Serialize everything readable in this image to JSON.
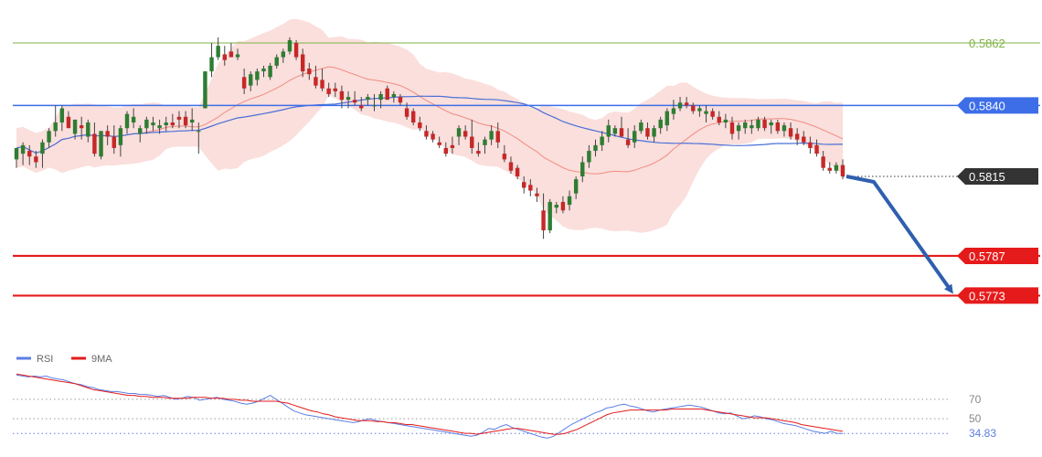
{
  "chart_data": {
    "type": "candlestick",
    "price_axis": {
      "min": 0.5758,
      "max": 0.5872
    },
    "levels": [
      {
        "value": 0.5862,
        "label": "0.5862",
        "color": "#7cb342",
        "style": "thin",
        "tag": "text"
      },
      {
        "value": 0.584,
        "label": "0.5840",
        "color": "#3d6ee8",
        "style": "medium",
        "tag": "badge"
      },
      {
        "value": 0.5815,
        "label": "0.5815",
        "color": "#333333",
        "style": "dotted",
        "tag": "badge"
      },
      {
        "value": 0.5787,
        "label": "0.5787",
        "color": "#e51b1b",
        "style": "thick",
        "tag": "badge"
      },
      {
        "value": 0.5773,
        "label": "0.5773",
        "color": "#e51b1b",
        "style": "thick",
        "tag": "badge"
      }
    ],
    "candles": [
      [
        0.5821,
        0.5825,
        0.5818,
        0.5825
      ],
      [
        0.5823,
        0.5827,
        0.5819,
        0.5826
      ],
      [
        0.5824,
        0.5826,
        0.5819,
        0.5822
      ],
      [
        0.5822,
        0.5824,
        0.5818,
        0.582
      ],
      [
        0.5823,
        0.5828,
        0.5818,
        0.5827
      ],
      [
        0.5827,
        0.5832,
        0.5825,
        0.5831
      ],
      [
        0.5831,
        0.584,
        0.5829,
        0.5834
      ],
      [
        0.5834,
        0.584,
        0.5831,
        0.5839
      ],
      [
        0.5836,
        0.5838,
        0.5832,
        0.5832
      ],
      [
        0.583,
        0.5835,
        0.5828,
        0.5835
      ],
      [
        0.5833,
        0.5836,
        0.5828,
        0.5832
      ],
      [
        0.5829,
        0.5835,
        0.5827,
        0.5834
      ],
      [
        0.583,
        0.5834,
        0.5822,
        0.5823
      ],
      [
        0.5822,
        0.5831,
        0.5821,
        0.5831
      ],
      [
        0.5831,
        0.5833,
        0.5826,
        0.5829
      ],
      [
        0.5829,
        0.5833,
        0.5823,
        0.5825
      ],
      [
        0.5826,
        0.5833,
        0.5822,
        0.5832
      ],
      [
        0.5832,
        0.5838,
        0.583,
        0.5837
      ],
      [
        0.5834,
        0.5839,
        0.5832,
        0.5836
      ],
      [
        0.583,
        0.5833,
        0.5827,
        0.5832
      ],
      [
        0.5832,
        0.5836,
        0.583,
        0.5835
      ],
      [
        0.5833,
        0.5836,
        0.5831,
        0.5834
      ],
      [
        0.5832,
        0.5835,
        0.583,
        0.5833
      ],
      [
        0.5833,
        0.5836,
        0.5831,
        0.5834
      ],
      [
        0.5834,
        0.5837,
        0.5832,
        0.5833
      ],
      [
        0.5836,
        0.5838,
        0.5832,
        0.5835
      ],
      [
        0.5836,
        0.5838,
        0.5832,
        0.5833
      ],
      [
        0.5834,
        0.5839,
        0.5831,
        0.5835
      ],
      [
        0.5831,
        0.5834,
        0.5823,
        0.5831
      ],
      [
        0.5839,
        0.5852,
        0.5839,
        0.5852
      ],
      [
        0.5852,
        0.5862,
        0.585,
        0.5857
      ],
      [
        0.5857,
        0.5864,
        0.5856,
        0.5861
      ],
      [
        0.5858,
        0.5861,
        0.5854,
        0.5856
      ],
      [
        0.5859,
        0.5862,
        0.5857,
        0.5857
      ],
      [
        0.5857,
        0.586,
        0.5856,
        0.5858
      ],
      [
        0.585,
        0.5853,
        0.5844,
        0.5846
      ],
      [
        0.5847,
        0.5852,
        0.5845,
        0.5851
      ],
      [
        0.5849,
        0.5853,
        0.5847,
        0.5852
      ],
      [
        0.5852,
        0.5854,
        0.585,
        0.5853
      ],
      [
        0.585,
        0.5855,
        0.5849,
        0.5854
      ],
      [
        0.5854,
        0.5858,
        0.5853,
        0.5857
      ],
      [
        0.5857,
        0.586,
        0.5855,
        0.5859
      ],
      [
        0.5859,
        0.5864,
        0.5858,
        0.5863
      ],
      [
        0.5862,
        0.5863,
        0.5856,
        0.5857
      ],
      [
        0.5858,
        0.586,
        0.585,
        0.5852
      ],
      [
        0.5853,
        0.5855,
        0.5849,
        0.5851
      ],
      [
        0.585,
        0.5854,
        0.5846,
        0.5847
      ],
      [
        0.5849,
        0.5853,
        0.5845,
        0.5846
      ],
      [
        0.5846,
        0.5848,
        0.5843,
        0.5844
      ],
      [
        0.5846,
        0.5848,
        0.5843,
        0.5845
      ],
      [
        0.5845,
        0.5847,
        0.5839,
        0.5842
      ],
      [
        0.5842,
        0.5845,
        0.5839,
        0.5843
      ],
      [
        0.5842,
        0.5845,
        0.584,
        0.5841
      ],
      [
        0.584,
        0.5843,
        0.5838,
        0.5839
      ],
      [
        0.5842,
        0.5844,
        0.584,
        0.5843
      ],
      [
        0.584,
        0.5844,
        0.5838,
        0.584
      ],
      [
        0.5842,
        0.5845,
        0.5839,
        0.5844
      ],
      [
        0.5846,
        0.5847,
        0.5842,
        0.5842
      ],
      [
        0.5843,
        0.5845,
        0.5841,
        0.5844
      ],
      [
        0.5843,
        0.5844,
        0.584,
        0.5841
      ],
      [
        0.5839,
        0.5841,
        0.5835,
        0.5836
      ],
      [
        0.5838,
        0.5839,
        0.5833,
        0.5834
      ],
      [
        0.5834,
        0.5836,
        0.5831,
        0.5832
      ],
      [
        0.5831,
        0.5833,
        0.5828,
        0.5829
      ],
      [
        0.583,
        0.5831,
        0.5827,
        0.5828
      ],
      [
        0.5827,
        0.5829,
        0.5825,
        0.5826
      ],
      [
        0.5825,
        0.5827,
        0.5822,
        0.5823
      ],
      [
        0.5826,
        0.5829,
        0.5823,
        0.5825
      ],
      [
        0.5829,
        0.5833,
        0.5826,
        0.5832
      ],
      [
        0.5831,
        0.5833,
        0.5828,
        0.5829
      ],
      [
        0.5829,
        0.5835,
        0.5823,
        0.5825
      ],
      [
        0.5824,
        0.5827,
        0.5822,
        0.5823
      ],
      [
        0.5826,
        0.5829,
        0.5823,
        0.5828
      ],
      [
        0.5828,
        0.5833,
        0.5826,
        0.5831
      ],
      [
        0.5831,
        0.5834,
        0.5825,
        0.5827
      ],
      [
        0.5823,
        0.5826,
        0.582,
        0.5821
      ],
      [
        0.582,
        0.5822,
        0.5816,
        0.5817
      ],
      [
        0.5818,
        0.5819,
        0.5814,
        0.5815
      ],
      [
        0.5813,
        0.5815,
        0.5809,
        0.5811
      ],
      [
        0.5812,
        0.5814,
        0.5808,
        0.581
      ],
      [
        0.5809,
        0.5811,
        0.5806,
        0.5808
      ],
      [
        0.5803,
        0.5809,
        0.5793,
        0.5796
      ],
      [
        0.5796,
        0.5807,
        0.5795,
        0.5806
      ],
      [
        0.5804,
        0.5806,
        0.5802,
        0.5805
      ],
      [
        0.5806,
        0.5808,
        0.5802,
        0.5803
      ],
      [
        0.5805,
        0.581,
        0.5803,
        0.5808
      ],
      [
        0.5809,
        0.5815,
        0.5807,
        0.5814
      ],
      [
        0.5815,
        0.5822,
        0.5813,
        0.582
      ],
      [
        0.582,
        0.5826,
        0.5818,
        0.5824
      ],
      [
        0.5824,
        0.5828,
        0.5822,
        0.5826
      ],
      [
        0.5826,
        0.5831,
        0.5824,
        0.5829
      ],
      [
        0.5829,
        0.5835,
        0.5827,
        0.5833
      ],
      [
        0.583,
        0.5833,
        0.5829,
        0.5832
      ],
      [
        0.5832,
        0.5836,
        0.5829,
        0.5829
      ],
      [
        0.5828,
        0.5832,
        0.5825,
        0.5826
      ],
      [
        0.5827,
        0.5833,
        0.5825,
        0.5831
      ],
      [
        0.5831,
        0.5835,
        0.583,
        0.5834
      ],
      [
        0.5832,
        0.5834,
        0.5828,
        0.5829
      ],
      [
        0.5829,
        0.5833,
        0.5827,
        0.5832
      ],
      [
        0.5832,
        0.5836,
        0.583,
        0.5835
      ],
      [
        0.5833,
        0.5839,
        0.5831,
        0.5838
      ],
      [
        0.5837,
        0.5842,
        0.5835,
        0.5839
      ],
      [
        0.5839,
        0.5843,
        0.5838,
        0.5841
      ],
      [
        0.5841,
        0.5843,
        0.5839,
        0.584
      ],
      [
        0.584,
        0.5841,
        0.5837,
        0.5838
      ],
      [
        0.5838,
        0.584,
        0.5836,
        0.5839
      ],
      [
        0.5837,
        0.584,
        0.5834,
        0.5838
      ],
      [
        0.5838,
        0.5839,
        0.5835,
        0.5836
      ],
      [
        0.5836,
        0.5838,
        0.5833,
        0.5834
      ],
      [
        0.5834,
        0.5837,
        0.5832,
        0.5835
      ],
      [
        0.5834,
        0.5836,
        0.5828,
        0.583
      ],
      [
        0.5831,
        0.5834,
        0.5828,
        0.5833
      ],
      [
        0.5832,
        0.5835,
        0.583,
        0.5834
      ],
      [
        0.5832,
        0.5835,
        0.583,
        0.5833
      ],
      [
        0.5832,
        0.5836,
        0.5831,
        0.5835
      ],
      [
        0.5835,
        0.5836,
        0.5831,
        0.5832
      ],
      [
        0.5833,
        0.5835,
        0.583,
        0.5834
      ],
      [
        0.5834,
        0.5835,
        0.583,
        0.5831
      ],
      [
        0.5831,
        0.5834,
        0.5829,
        0.5833
      ],
      [
        0.5832,
        0.5834,
        0.5828,
        0.5829
      ],
      [
        0.583,
        0.5832,
        0.5826,
        0.5828
      ],
      [
        0.5829,
        0.5831,
        0.5826,
        0.5827
      ],
      [
        0.5827,
        0.5829,
        0.5823,
        0.5825
      ],
      [
        0.5826,
        0.5828,
        0.5822,
        0.5823
      ],
      [
        0.5822,
        0.5824,
        0.5817,
        0.5818
      ],
      [
        0.5818,
        0.582,
        0.5816,
        0.5817
      ],
      [
        0.5817,
        0.582,
        0.5816,
        0.5819
      ],
      [
        0.5819,
        0.5821,
        0.5814,
        0.5815
      ]
    ],
    "rsi": {
      "legend": [
        "RSI",
        "9MA"
      ],
      "colors": {
        "rsi": "#5b7ee5",
        "ma": "#e51b1b"
      },
      "axis": {
        "min": 20,
        "max": 100
      },
      "levels": [
        {
          "value": 70,
          "label": "70"
        },
        {
          "value": 50,
          "label": "50"
        },
        {
          "value": 34.83,
          "label": "34.83",
          "current": true
        }
      ],
      "values": [
        95,
        94,
        93,
        94,
        93,
        94,
        92,
        91,
        90,
        88,
        86,
        85,
        83,
        82,
        80,
        79,
        78,
        78,
        77,
        76,
        76,
        75,
        75,
        74,
        73,
        74,
        72,
        70,
        71,
        73,
        72,
        69,
        70,
        71,
        72,
        70,
        69,
        68,
        66,
        65,
        66,
        68,
        71,
        74,
        70,
        66,
        62,
        58,
        56,
        54,
        53,
        52,
        51,
        50,
        49,
        48,
        47,
        46,
        47,
        49,
        50,
        48,
        47,
        46,
        45,
        44,
        43,
        42,
        41,
        40,
        39,
        38,
        37,
        36,
        35,
        34,
        33,
        32,
        33,
        36,
        40,
        39,
        42,
        44,
        41,
        39,
        37,
        35,
        33,
        31,
        30,
        32,
        36,
        40,
        44,
        47,
        50,
        53,
        56,
        58,
        61,
        62,
        64,
        65,
        63,
        62,
        60,
        58,
        57,
        59,
        60,
        61,
        62,
        63,
        64,
        63,
        62,
        60,
        58,
        56,
        55,
        56,
        53,
        50,
        51,
        53,
        52,
        50,
        49,
        47,
        45,
        44,
        43,
        41,
        39,
        37,
        36,
        35,
        37,
        35,
        34.83
      ],
      "ma": [
        96,
        95,
        94,
        93,
        92,
        91,
        90,
        89,
        88,
        87,
        86,
        84,
        82,
        80,
        79,
        78,
        77,
        76,
        75,
        74,
        74,
        73,
        73,
        72,
        72,
        72,
        71,
        71,
        71,
        71,
        72,
        72,
        72,
        71,
        71,
        71,
        70,
        70,
        69,
        69,
        68,
        68,
        68,
        68,
        68,
        67,
        66,
        64,
        62,
        60,
        58,
        57,
        55,
        54,
        52,
        51,
        50,
        49,
        48,
        48,
        48,
        47,
        47,
        46,
        46,
        45,
        44,
        44,
        43,
        42,
        41,
        40,
        39,
        38,
        37,
        36,
        35,
        35,
        34,
        35,
        36,
        37,
        38,
        39,
        40,
        40,
        39,
        38,
        37,
        36,
        35,
        34,
        34,
        35,
        37,
        39,
        42,
        45,
        48,
        51,
        54,
        56,
        57,
        58,
        59,
        59,
        59,
        59,
        59,
        59,
        59,
        60,
        60,
        60,
        60,
        60,
        60,
        59,
        58,
        57,
        56,
        55,
        54,
        53,
        52,
        51,
        51,
        51,
        50,
        49,
        48,
        47,
        46,
        44,
        43,
        42,
        41,
        40,
        39,
        38,
        37
      ]
    },
    "bands": {
      "ma_fast_color": "#f28b82",
      "ma_slow_color": "#4a6fd8",
      "band_color": "#f9d9d6"
    },
    "projection": {
      "from": 0.5815,
      "to": 0.5773,
      "color": "#2f5fae"
    }
  }
}
